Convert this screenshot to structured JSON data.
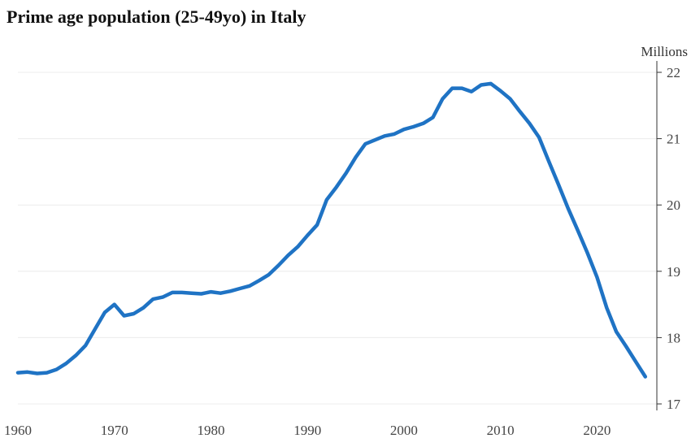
{
  "chart_data": {
    "type": "line",
    "title": "Prime age population (25-49yo) in Italy",
    "ylabel": "Millions",
    "xlabel": "",
    "xlim": [
      1960,
      2026
    ],
    "ylim": [
      17,
      22.05
    ],
    "x_ticks": [
      1960,
      1970,
      1980,
      1990,
      2000,
      2010,
      2020
    ],
    "y_ticks": [
      17,
      18,
      19,
      20,
      21,
      22
    ],
    "y_axis_side": "right",
    "grid": "horizontal",
    "legend": "none",
    "color": "#1f73c4",
    "x": [
      1960,
      1961,
      1962,
      1963,
      1964,
      1965,
      1966,
      1967,
      1968,
      1969,
      1970,
      1971,
      1972,
      1973,
      1974,
      1975,
      1976,
      1977,
      1978,
      1979,
      1980,
      1981,
      1982,
      1983,
      1984,
      1985,
      1986,
      1987,
      1988,
      1989,
      1990,
      1991,
      1992,
      1993,
      1994,
      1995,
      1996,
      1997,
      1998,
      1999,
      2000,
      2001,
      2002,
      2003,
      2004,
      2005,
      2006,
      2007,
      2008,
      2009,
      2010,
      2011,
      2012,
      2013,
      2014,
      2015,
      2016,
      2017,
      2018,
      2019,
      2020,
      2021,
      2022,
      2023,
      2024,
      2025
    ],
    "values": [
      17.47,
      17.48,
      17.46,
      17.47,
      17.52,
      17.61,
      17.73,
      17.88,
      18.13,
      18.38,
      18.5,
      18.33,
      18.36,
      18.45,
      18.58,
      18.61,
      18.68,
      18.68,
      18.67,
      18.66,
      18.69,
      18.67,
      18.7,
      18.74,
      18.78,
      18.86,
      18.95,
      19.09,
      19.24,
      19.37,
      19.54,
      19.7,
      20.08,
      20.27,
      20.48,
      20.72,
      20.92,
      20.98,
      21.04,
      21.07,
      21.14,
      21.18,
      21.23,
      21.32,
      21.6,
      21.76,
      21.76,
      21.71,
      21.81,
      21.83,
      21.72,
      21.6,
      21.41,
      21.23,
      21.02,
      20.66,
      20.31,
      19.95,
      19.62,
      19.28,
      18.91,
      18.45,
      18.09,
      17.87,
      17.64,
      17.41
    ]
  }
}
